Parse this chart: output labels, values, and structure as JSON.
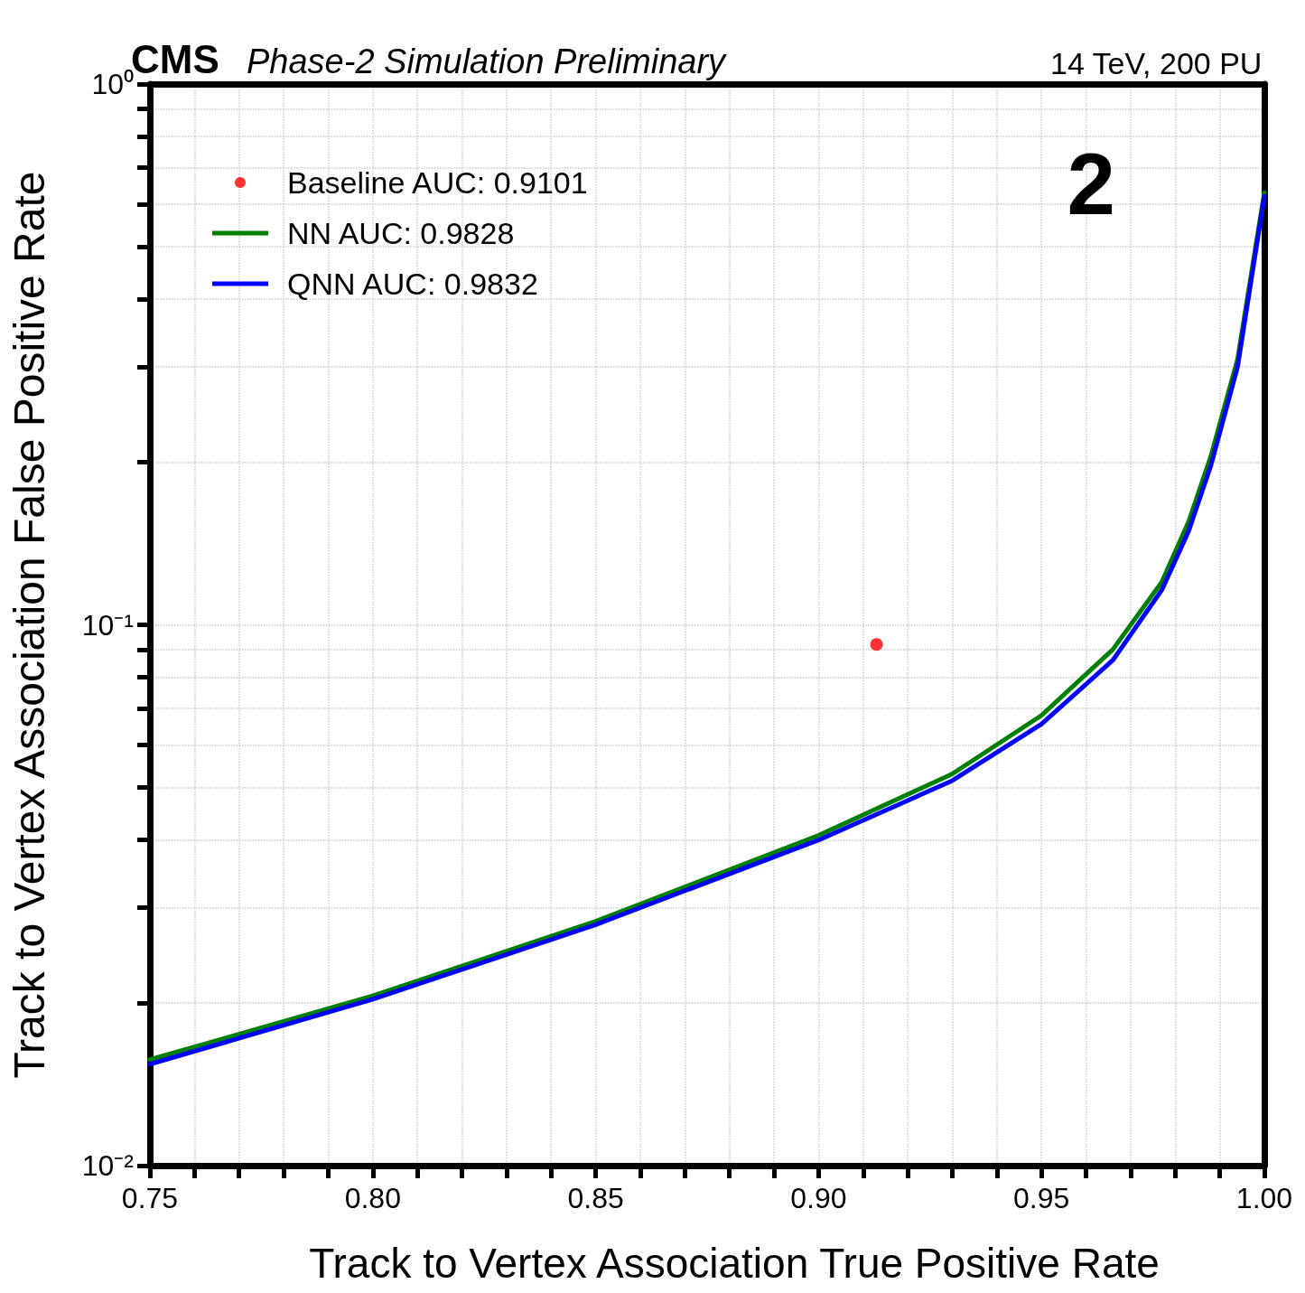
{
  "chart_data": {
    "type": "line",
    "title": "CMS",
    "subtitle": "Phase-2 Simulation Preliminary",
    "xlabel": "Track to Vertex Association True Positive Rate",
    "ylabel": "Track to Vertex Association False Positive Rate",
    "annotations": [
      "14 TeV, 200 PU",
      "2"
    ],
    "log": "y",
    "grid": true,
    "legend": "top left",
    "line_style": "solid",
    "marker": "none",
    "xlim": [
      0.75,
      1.0
    ],
    "xticks": [
      {
        "value": 0.75,
        "label": "0.75"
      },
      {
        "value": 0.8,
        "label": "0.80"
      },
      {
        "value": 0.85,
        "label": "0.85"
      },
      {
        "value": 0.9,
        "label": "0.90"
      },
      {
        "value": 0.95,
        "label": "0.95"
      },
      {
        "value": 1.0,
        "label": "1.00"
      },
      {
        "value": 0.76,
        "label": null
      },
      {
        "value": 0.77,
        "label": null
      },
      {
        "value": 0.78,
        "label": null
      },
      {
        "value": 0.79,
        "label": null
      },
      {
        "value": 0.81,
        "label": null
      },
      {
        "value": 0.82,
        "label": null
      },
      {
        "value": 0.83,
        "label": null
      },
      {
        "value": 0.84,
        "label": null
      },
      {
        "value": 0.86,
        "label": null
      },
      {
        "value": 0.87,
        "label": null
      },
      {
        "value": 0.88,
        "label": null
      },
      {
        "value": 0.89,
        "label": null
      },
      {
        "value": 0.91,
        "label": null
      },
      {
        "value": 0.92,
        "label": null
      },
      {
        "value": 0.93,
        "label": null
      },
      {
        "value": 0.94,
        "label": null
      },
      {
        "value": 0.96,
        "label": null
      },
      {
        "value": 0.97,
        "label": null
      },
      {
        "value": 0.98,
        "label": null
      },
      {
        "value": 0.99,
        "label": null
      }
    ],
    "ylim": [
      0.01,
      1
    ],
    "yticks": [
      {
        "value": 0.01,
        "label": "10⁻²"
      },
      {
        "value": 0.1,
        "label": "10⁻¹"
      },
      {
        "value": 1,
        "label": "10⁰"
      },
      {
        "value": 0.02,
        "label": null
      },
      {
        "value": 0.03,
        "label": null
      },
      {
        "value": 0.04,
        "label": null
      },
      {
        "value": 0.05,
        "label": null
      },
      {
        "value": 0.06,
        "label": null
      },
      {
        "value": 0.07,
        "label": null
      },
      {
        "value": 0.08,
        "label": null
      },
      {
        "value": 0.09,
        "label": null
      },
      {
        "value": 0.2,
        "label": null
      },
      {
        "value": 0.3,
        "label": null
      },
      {
        "value": 0.4,
        "label": null
      },
      {
        "value": 0.5,
        "label": null
      },
      {
        "value": 0.6,
        "label": null
      },
      {
        "value": 0.7,
        "label": null
      },
      {
        "value": 0.8,
        "label": null
      },
      {
        "value": 0.9,
        "label": null
      }
    ],
    "series": [
      {
        "name": "Baseline AUC: 0.9101",
        "type": "scatter",
        "marker": "circle",
        "color": "#ff0000",
        "x": [
          0.913
        ],
        "values": [
          0.092
        ]
      },
      {
        "name": "NN AUC: 0.9828",
        "color": "#008000",
        "x": [
          0.75,
          0.8,
          0.85,
          0.9,
          0.93,
          0.95,
          0.966,
          0.977,
          0.983,
          0.988,
          0.994,
          1.0
        ],
        "values": [
          0.0157,
          0.0206,
          0.0283,
          0.0408,
          0.053,
          0.068,
          0.09,
          0.12,
          0.155,
          0.205,
          0.31,
          0.63
        ]
      },
      {
        "name": "QNN AUC: 0.9832",
        "color": "#0000ff",
        "x": [
          0.75,
          0.8,
          0.85,
          0.9,
          0.93,
          0.95,
          0.966,
          0.977,
          0.983,
          0.988,
          0.994,
          1.0
        ],
        "values": [
          0.0154,
          0.0203,
          0.0279,
          0.04,
          0.0515,
          0.0655,
          0.086,
          0.116,
          0.149,
          0.197,
          0.3,
          0.62
        ]
      }
    ]
  }
}
